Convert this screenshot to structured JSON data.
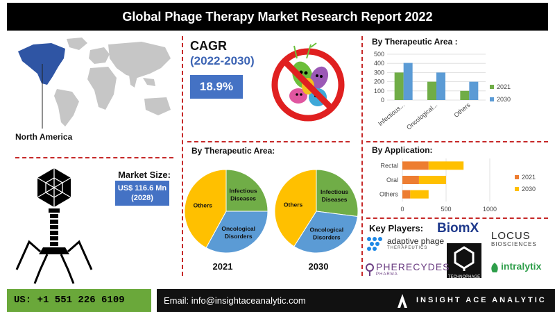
{
  "title": "Global Phage Therapy Market Research Report 2022",
  "region": {
    "label": "North America"
  },
  "cagr": {
    "label": "CAGR",
    "period": "(2022-2030)",
    "value": "18.9%"
  },
  "market_size": {
    "label": "Market Size:",
    "value": "US$ 116.6 Mn",
    "year": "(2028)"
  },
  "headings": {
    "therapeutic_bar": "By Therapeutic Area :",
    "therapeutic_pie": "By Therapeutic Area:",
    "application": "By Application:",
    "key_players": "Key Players:"
  },
  "key_players": {
    "biomx": "BiomX",
    "locus": "LOCUS",
    "locus_sub": "BIOSCIENCES",
    "adaptive": "adaptive phage",
    "adaptive_sub": "THERAPEUTICS",
    "pherecydes": "PHERECYDES",
    "pherecydes_sub": "PHARMA",
    "technophage": "TECHNOPHAGE",
    "intralytix": "intralytix"
  },
  "footer": {
    "phone": "US: +1 551 226 6109",
    "email": "Email: info@insightaceanalytic.com",
    "brand": "INSIGHT ACE ANALYTIC"
  },
  "colors": {
    "green": "#70ad47",
    "blue": "#5b9bd5",
    "orange": "#ed7d31",
    "yellow": "#ffc000",
    "accent": "#4472c4",
    "footer_green": "#6aa83a"
  },
  "chart_data": [
    {
      "type": "bar",
      "categories": [
        "Infectious...",
        "Oncological...",
        "Others"
      ],
      "series": [
        {
          "name": "2021",
          "values": [
            300,
            200,
            100
          ],
          "color": "#70ad47"
        },
        {
          "name": "2030",
          "values": [
            405,
            300,
            200
          ],
          "color": "#5b9bd5"
        }
      ],
      "ylim": [
        0,
        500
      ],
      "yticks": [
        0,
        100,
        200,
        300,
        400,
        500
      ],
      "legend": "right"
    },
    {
      "type": "bar",
      "orientation": "horizontal",
      "categories": [
        "Rectal",
        "Oral",
        "Others"
      ],
      "series": [
        {
          "name": "2021",
          "values": [
            300,
            190,
            90
          ],
          "color": "#ed7d31"
        },
        {
          "name": "2030",
          "values": [
            400,
            310,
            210
          ],
          "color": "#ffc000"
        }
      ],
      "xlim": [
        0,
        1000
      ],
      "xticks": [
        0,
        500,
        1000
      ],
      "legend": "right"
    },
    {
      "type": "pie",
      "year_label": "2021",
      "slices": [
        {
          "label": "Infectious Diseases",
          "value": 25,
          "color": "#70ad47"
        },
        {
          "label": "Oncological Disorders",
          "value": 33,
          "color": "#5b9bd5"
        },
        {
          "label": "Others",
          "value": 42,
          "color": "#ffc000"
        }
      ]
    },
    {
      "type": "pie",
      "year_label": "2030",
      "slices": [
        {
          "label": "Infectious Diseases",
          "value": 27,
          "color": "#70ad47"
        },
        {
          "label": "Oncological Disorders",
          "value": 32,
          "color": "#5b9bd5"
        },
        {
          "label": "Others",
          "value": 41,
          "color": "#ffc000"
        }
      ]
    }
  ]
}
